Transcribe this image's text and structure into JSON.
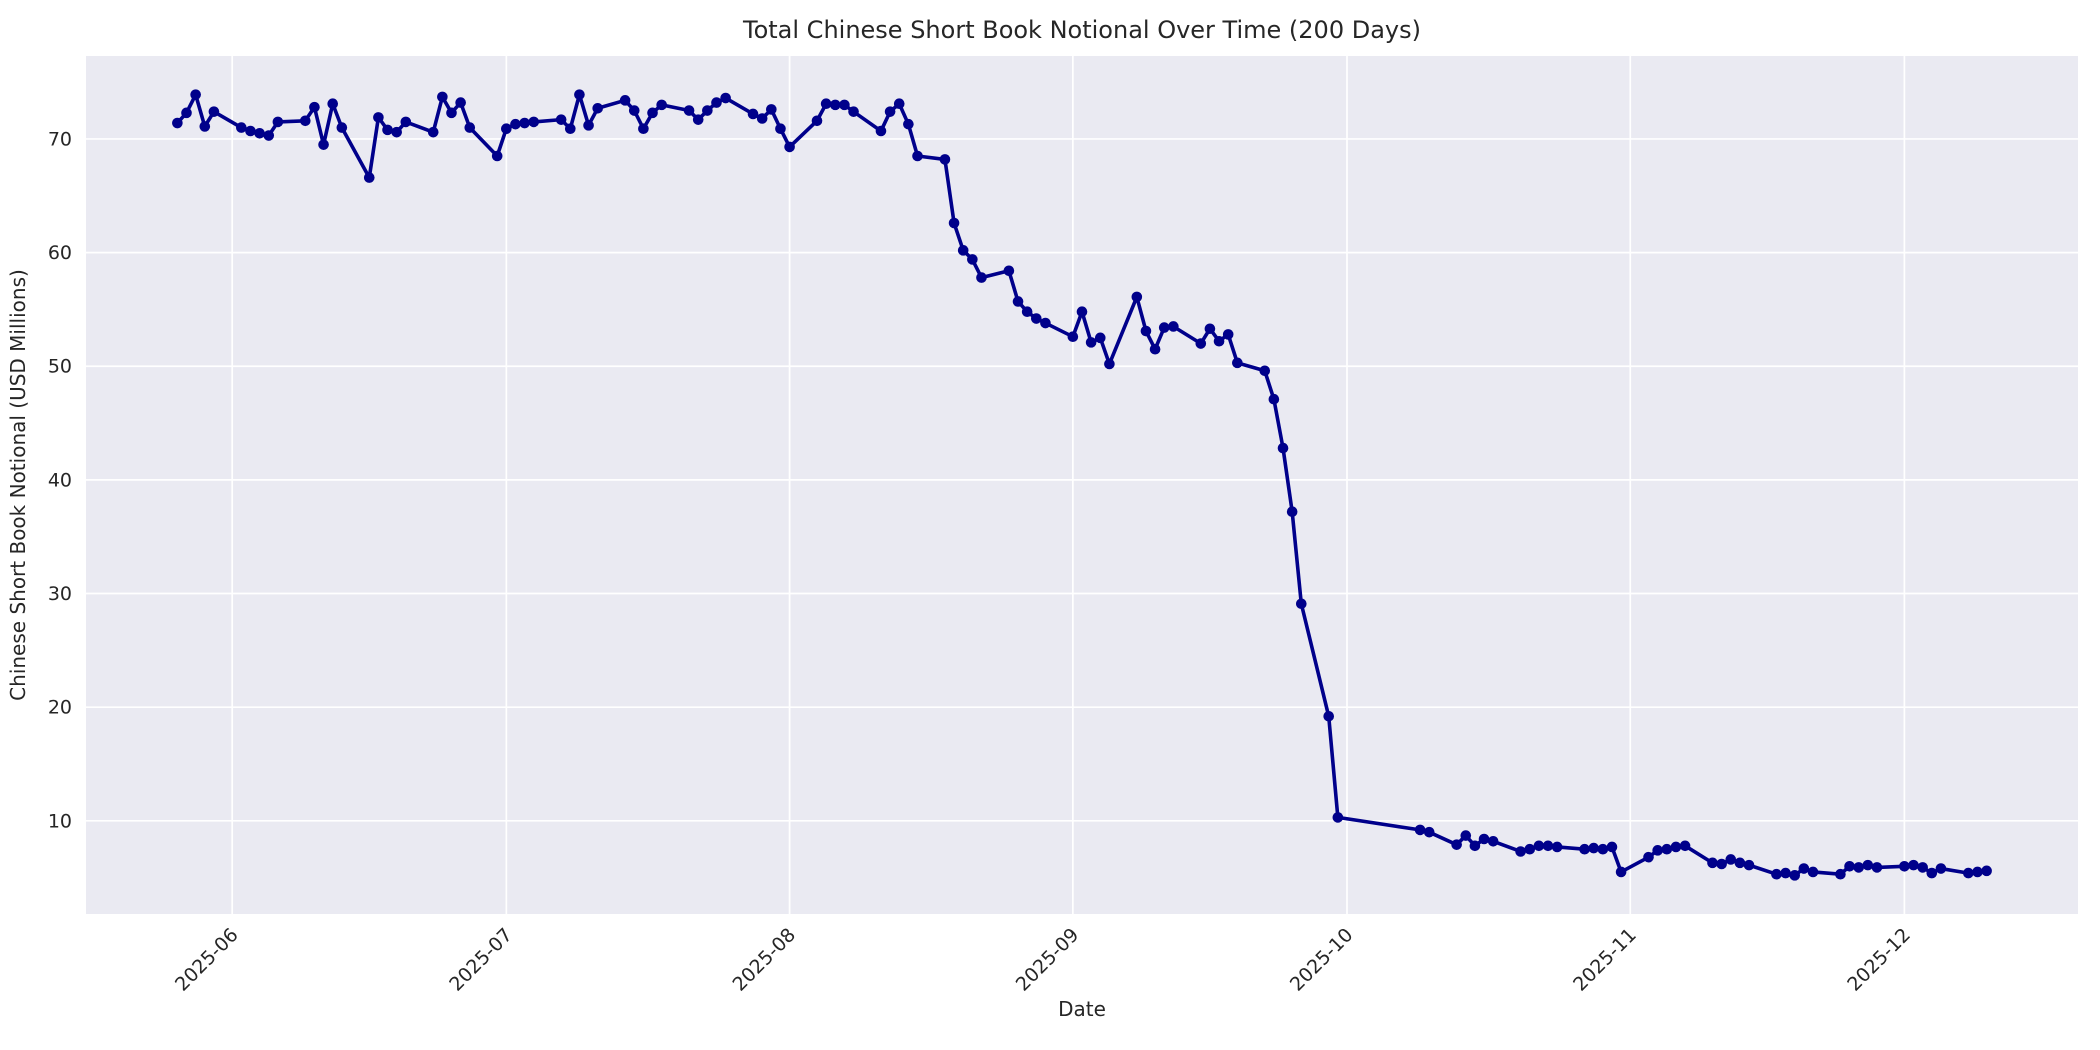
{
  "style": {
    "figure_bg": "#ffffff",
    "plot_bg": "#eaeaf2",
    "grid_color": "#ffffff",
    "line_color": "#00008b",
    "marker_color": "#00008b",
    "text_color": "#262626"
  },
  "chart_data": {
    "type": "line",
    "title": "Total Chinese Short Book Notional Over Time (200 Days)",
    "xlabel": "Date",
    "ylabel": "Chinese Short Book Notional (USD Millions)",
    "grid": true,
    "legend": false,
    "marker": "o",
    "x_epoch": "2025-05-26",
    "xlim_days_from_first_point": [
      -10,
      208
    ],
    "ylim": [
      1.8,
      77.3
    ],
    "y_ticks": [
      10,
      20,
      30,
      40,
      50,
      60,
      70
    ],
    "x_ticks": [
      {
        "label": "2025-06",
        "date": "2025-06-01"
      },
      {
        "label": "2025-07",
        "date": "2025-07-01"
      },
      {
        "label": "2025-08",
        "date": "2025-08-01"
      },
      {
        "label": "2025-09",
        "date": "2025-09-01"
      },
      {
        "label": "2025-10",
        "date": "2025-10-01"
      },
      {
        "label": "2025-11",
        "date": "2025-11-01"
      },
      {
        "label": "2025-12",
        "date": "2025-12-01"
      }
    ],
    "dates": [
      "2025-05-26",
      "2025-05-27",
      "2025-05-28",
      "2025-05-29",
      "2025-05-30",
      "2025-06-02",
      "2025-06-03",
      "2025-06-04",
      "2025-06-05",
      "2025-06-06",
      "2025-06-09",
      "2025-06-10",
      "2025-06-11",
      "2025-06-12",
      "2025-06-13",
      "2025-06-16",
      "2025-06-17",
      "2025-06-18",
      "2025-06-19",
      "2025-06-20",
      "2025-06-23",
      "2025-06-24",
      "2025-06-25",
      "2025-06-26",
      "2025-06-27",
      "2025-06-30",
      "2025-07-01",
      "2025-07-02",
      "2025-07-03",
      "2025-07-04",
      "2025-07-07",
      "2025-07-08",
      "2025-07-09",
      "2025-07-10",
      "2025-07-11",
      "2025-07-14",
      "2025-07-15",
      "2025-07-16",
      "2025-07-17",
      "2025-07-18",
      "2025-07-21",
      "2025-07-22",
      "2025-07-23",
      "2025-07-24",
      "2025-07-25",
      "2025-07-28",
      "2025-07-29",
      "2025-07-30",
      "2025-07-31",
      "2025-08-01",
      "2025-08-04",
      "2025-08-05",
      "2025-08-06",
      "2025-08-07",
      "2025-08-08",
      "2025-08-11",
      "2025-08-12",
      "2025-08-13",
      "2025-08-14",
      "2025-08-15",
      "2025-08-18",
      "2025-08-19",
      "2025-08-20",
      "2025-08-21",
      "2025-08-22",
      "2025-08-25",
      "2025-08-26",
      "2025-08-27",
      "2025-08-28",
      "2025-08-29",
      "2025-09-01",
      "2025-09-02",
      "2025-09-03",
      "2025-09-04",
      "2025-09-05",
      "2025-09-08",
      "2025-09-09",
      "2025-09-10",
      "2025-09-11",
      "2025-09-12",
      "2025-09-15",
      "2025-09-16",
      "2025-09-17",
      "2025-09-18",
      "2025-09-19",
      "2025-09-22",
      "2025-09-23",
      "2025-09-24",
      "2025-09-25",
      "2025-09-26",
      "2025-09-29",
      "2025-09-30",
      "2025-10-09",
      "2025-10-10",
      "2025-10-13",
      "2025-10-14",
      "2025-10-15",
      "2025-10-16",
      "2025-10-17",
      "2025-10-20",
      "2025-10-21",
      "2025-10-22",
      "2025-10-23",
      "2025-10-24",
      "2025-10-27",
      "2025-10-28",
      "2025-10-29",
      "2025-10-30",
      "2025-10-31",
      "2025-11-03",
      "2025-11-04",
      "2025-11-05",
      "2025-11-06",
      "2025-11-07",
      "2025-11-10",
      "2025-11-11",
      "2025-11-12",
      "2025-11-13",
      "2025-11-14",
      "2025-11-17",
      "2025-11-18",
      "2025-11-19",
      "2025-11-20",
      "2025-11-21",
      "2025-11-24",
      "2025-11-25",
      "2025-11-26",
      "2025-11-27",
      "2025-11-28",
      "2025-12-01",
      "2025-12-02",
      "2025-12-03",
      "2025-12-04",
      "2025-12-05",
      "2025-12-08",
      "2025-12-09",
      "2025-12-10"
    ],
    "values": [
      71.4,
      72.3,
      73.9,
      71.1,
      72.4,
      71.0,
      70.7,
      70.5,
      70.3,
      71.5,
      71.6,
      72.8,
      69.5,
      73.1,
      71.0,
      66.6,
      71.9,
      70.8,
      70.6,
      71.5,
      70.6,
      73.7,
      72.3,
      73.2,
      71.0,
      68.5,
      70.9,
      71.3,
      71.4,
      71.5,
      71.7,
      70.9,
      73.9,
      71.2,
      72.7,
      73.4,
      72.5,
      70.9,
      72.3,
      73.0,
      72.5,
      71.7,
      72.5,
      73.2,
      73.6,
      72.2,
      71.8,
      72.6,
      70.9,
      69.3,
      71.6,
      73.1,
      73.0,
      73.0,
      72.4,
      70.7,
      72.4,
      73.1,
      71.3,
      68.5,
      68.2,
      62.6,
      60.2,
      59.4,
      57.8,
      58.4,
      55.7,
      54.8,
      54.2,
      53.8,
      52.6,
      54.8,
      52.1,
      52.5,
      50.2,
      56.1,
      53.1,
      51.5,
      53.4,
      53.5,
      52.0,
      53.3,
      52.2,
      52.8,
      50.3,
      49.6,
      47.1,
      42.8,
      37.2,
      29.1,
      19.2,
      10.3,
      9.2,
      9.0,
      7.9,
      8.7,
      7.8,
      8.4,
      8.2,
      7.3,
      7.5,
      7.8,
      7.8,
      7.7,
      7.5,
      7.6,
      7.5,
      7.7,
      5.5,
      6.8,
      7.4,
      7.5,
      7.7,
      7.8,
      6.3,
      6.2,
      6.6,
      6.3,
      6.1,
      5.3,
      5.4,
      5.2,
      5.8,
      5.5,
      5.3,
      6.0,
      5.9,
      6.1,
      5.9,
      6.0,
      6.1,
      5.9,
      5.4,
      5.8,
      5.4,
      5.5,
      5.6
    ]
  }
}
